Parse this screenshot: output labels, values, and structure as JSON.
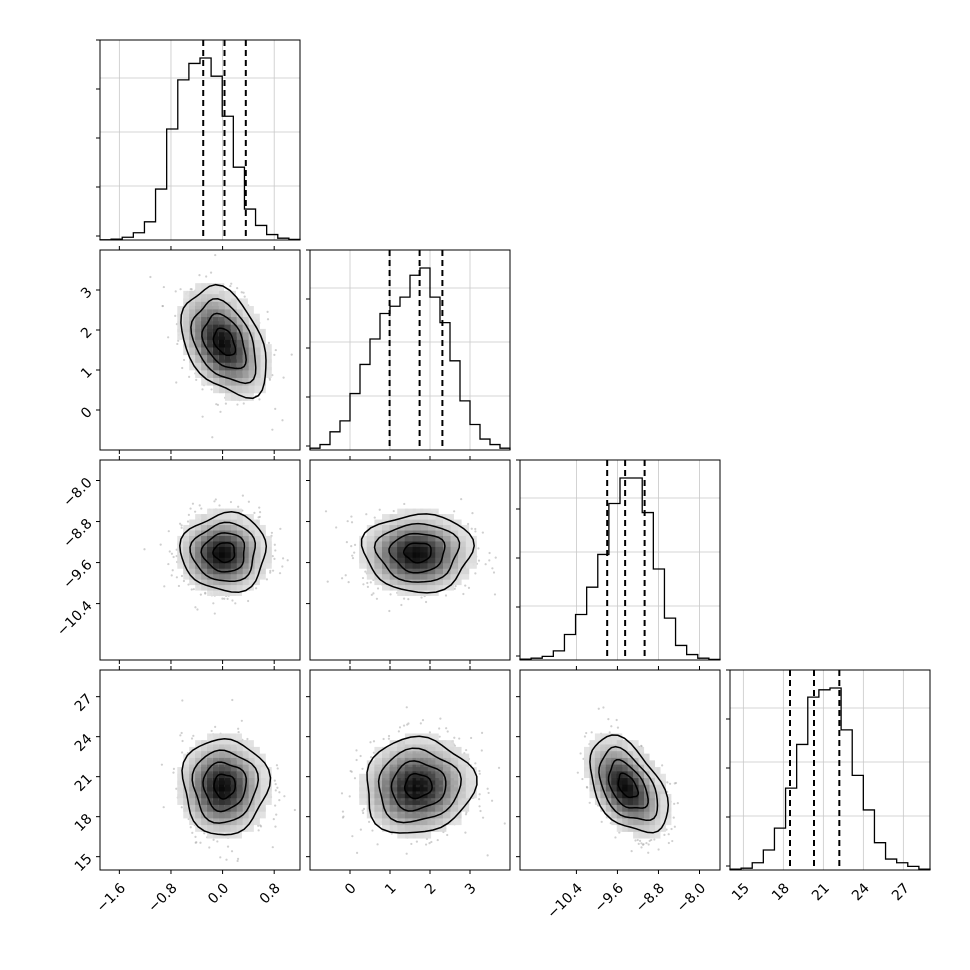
{
  "chart_data": {
    "type": "corner",
    "title": "",
    "grid": true,
    "parameters": [
      {
        "range": [
          -1.9,
          1.2
        ],
        "ticks": [
          "−1.6",
          "−0.8",
          "0.0",
          "0.8"
        ],
        "tick_values": [
          -1.6,
          -0.8,
          0.0,
          0.8
        ],
        "quantiles": [
          -0.3,
          0.03,
          0.36
        ],
        "peak": 0.03,
        "sigma": 0.33,
        "hist_counts": [
          0.001,
          0.005,
          0.015,
          0.04,
          0.1,
          0.28,
          0.61,
          0.88,
          0.97,
          1.0,
          0.9,
          0.68,
          0.4,
          0.17,
          0.08,
          0.03,
          0.01,
          0.003
        ]
      },
      {
        "range": [
          -1.0,
          4.0
        ],
        "ticks": [
          "0",
          "1",
          "2",
          "3"
        ],
        "tick_values": [
          0,
          1,
          2,
          3
        ],
        "quantiles": [
          0.99,
          1.74,
          2.31
        ],
        "peak": 1.7,
        "sigma": 0.68,
        "hist_counts": [
          0.01,
          0.03,
          0.1,
          0.16,
          0.31,
          0.47,
          0.61,
          0.75,
          0.79,
          0.84,
          0.96,
          1.0,
          0.84,
          0.7,
          0.49,
          0.27,
          0.14,
          0.06,
          0.03,
          0.01
        ]
      },
      {
        "range": [
          -11.5,
          -7.6
        ],
        "ticks": [
          "−10.4",
          "−9.6",
          "−8.8",
          "−8.0"
        ],
        "tick_values": [
          -10.4,
          -9.6,
          -8.8,
          -8.0
        ],
        "quantiles": [
          -9.8,
          -9.45,
          -9.07
        ],
        "peak": -9.4,
        "sigma": 0.38,
        "hist_counts": [
          0.005,
          0.01,
          0.02,
          0.05,
          0.14,
          0.25,
          0.4,
          0.58,
          0.86,
          1.0,
          1.0,
          0.81,
          0.5,
          0.23,
          0.08,
          0.03,
          0.01,
          0.003
        ]
      },
      {
        "range": [
          14.0,
          29.0
        ],
        "ticks": [
          "15",
          "18",
          "21",
          "24",
          "27"
        ],
        "tick_values": [
          15,
          18,
          21,
          24,
          27
        ],
        "quantiles": [
          18.5,
          20.3,
          22.2
        ],
        "peak": 20.3,
        "sigma": 1.8,
        "hist_counts": [
          0.005,
          0.01,
          0.04,
          0.11,
          0.23,
          0.45,
          0.69,
          0.95,
          0.99,
          1.0,
          0.77,
          0.52,
          0.33,
          0.15,
          0.06,
          0.04,
          0.02,
          0.005
        ]
      }
    ],
    "pairs": [
      {
        "x": 0,
        "y": 1,
        "correlation": -0.38
      },
      {
        "x": 0,
        "y": 2,
        "correlation": 0.0
      },
      {
        "x": 1,
        "y": 2,
        "correlation": 0.0
      },
      {
        "x": 0,
        "y": 3,
        "correlation": 0.0
      },
      {
        "x": 1,
        "y": 3,
        "correlation": 0.05
      },
      {
        "x": 2,
        "y": 3,
        "correlation": -0.45
      }
    ]
  }
}
